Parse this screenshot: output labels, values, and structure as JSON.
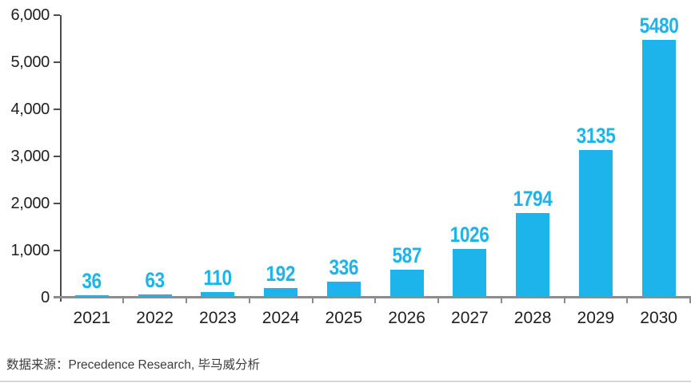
{
  "chart_data": {
    "type": "bar",
    "title": "",
    "xlabel": "",
    "ylabel": "",
    "categories": [
      "2021",
      "2022",
      "2023",
      "2024",
      "2025",
      "2026",
      "2027",
      "2028",
      "2029",
      "2030"
    ],
    "values": [
      36,
      63,
      110,
      192,
      336,
      587,
      1026,
      1794,
      3135,
      5480
    ],
    "ylim": [
      0,
      6000
    ],
    "y_ticks": [
      {
        "label": "6,000",
        "value": 6000
      },
      {
        "label": "5,000",
        "value": 5000
      },
      {
        "label": "4,000",
        "value": 4000
      },
      {
        "label": "3,000",
        "value": 3000
      },
      {
        "label": "2,000",
        "value": 2000
      },
      {
        "label": "1,000",
        "value": 1000
      },
      {
        "label": "0",
        "value": 0
      }
    ],
    "grid": false,
    "legend": null,
    "data_labels_shown": true,
    "colors": {
      "bar": "#1CB4EA",
      "value_label": "#1CB4EA",
      "axis_y": "#4D4D4D",
      "axis_x": "#8C8C8C",
      "tick_text": "#1F1F1F"
    }
  },
  "source": {
    "text": "数据来源：Precedence Research, 毕马威分析",
    "color": "#3C3C3C"
  }
}
